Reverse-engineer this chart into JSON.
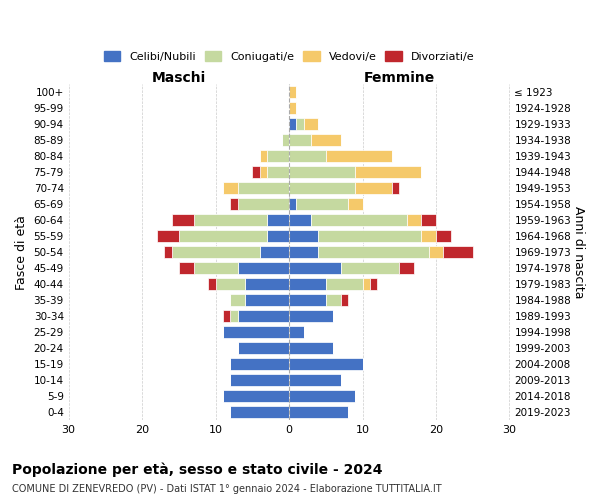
{
  "age_groups": [
    "100+",
    "95-99",
    "90-94",
    "85-89",
    "80-84",
    "75-79",
    "70-74",
    "65-69",
    "60-64",
    "55-59",
    "50-54",
    "45-49",
    "40-44",
    "35-39",
    "30-34",
    "25-29",
    "20-24",
    "15-19",
    "10-14",
    "5-9",
    "0-4"
  ],
  "birth_years": [
    "≤ 1923",
    "1924-1928",
    "1929-1933",
    "1934-1938",
    "1939-1943",
    "1944-1948",
    "1949-1953",
    "1954-1958",
    "1959-1963",
    "1964-1968",
    "1969-1973",
    "1974-1978",
    "1979-1983",
    "1984-1988",
    "1989-1993",
    "1994-1998",
    "1999-2003",
    "2004-2008",
    "2009-2013",
    "2014-2018",
    "2019-2023"
  ],
  "colors": {
    "celibi": "#4472C4",
    "coniugati": "#c5d9a0",
    "vedovi": "#f5c96a",
    "divorziati": "#c0272d"
  },
  "maschi": {
    "celibi": [
      0,
      0,
      0,
      0,
      0,
      0,
      0,
      0,
      3,
      3,
      4,
      7,
      6,
      6,
      7,
      9,
      7,
      8,
      8,
      9,
      8
    ],
    "coniugati": [
      0,
      0,
      0,
      1,
      3,
      3,
      7,
      7,
      10,
      12,
      12,
      6,
      4,
      2,
      1,
      0,
      0,
      0,
      0,
      0,
      0
    ],
    "vedovi": [
      0,
      0,
      0,
      0,
      1,
      1,
      2,
      0,
      0,
      0,
      0,
      0,
      0,
      0,
      0,
      0,
      0,
      0,
      0,
      0,
      0
    ],
    "divorziati": [
      0,
      0,
      0,
      0,
      0,
      1,
      0,
      1,
      3,
      3,
      1,
      2,
      1,
      0,
      1,
      0,
      0,
      0,
      0,
      0,
      0
    ]
  },
  "femmine": {
    "celibi": [
      0,
      0,
      1,
      0,
      0,
      0,
      0,
      1,
      3,
      4,
      4,
      7,
      5,
      5,
      6,
      2,
      6,
      10,
      7,
      9,
      8
    ],
    "coniugati": [
      0,
      0,
      1,
      3,
      5,
      9,
      9,
      7,
      13,
      14,
      15,
      8,
      5,
      2,
      0,
      0,
      0,
      0,
      0,
      0,
      0
    ],
    "vedovi": [
      1,
      1,
      2,
      4,
      9,
      9,
      5,
      2,
      2,
      2,
      2,
      0,
      1,
      0,
      0,
      0,
      0,
      0,
      0,
      0,
      0
    ],
    "divorziati": [
      0,
      0,
      0,
      0,
      0,
      0,
      1,
      0,
      2,
      2,
      4,
      2,
      1,
      1,
      0,
      0,
      0,
      0,
      0,
      0,
      0
    ]
  },
  "xlim": 30,
  "title": "Popolazione per età, sesso e stato civile - 2024",
  "subtitle": "COMUNE DI ZENEVREDO (PV) - Dati ISTAT 1° gennaio 2024 - Elaborazione TUTTITALIA.IT",
  "ylabel_left": "Fasce di età",
  "ylabel_right": "Anni di nascita",
  "xlabel_left": "Maschi",
  "xlabel_right": "Femmine",
  "legend_labels": [
    "Celibi/Nubili",
    "Coniugati/e",
    "Vedovi/e",
    "Divorziati/e"
  ]
}
